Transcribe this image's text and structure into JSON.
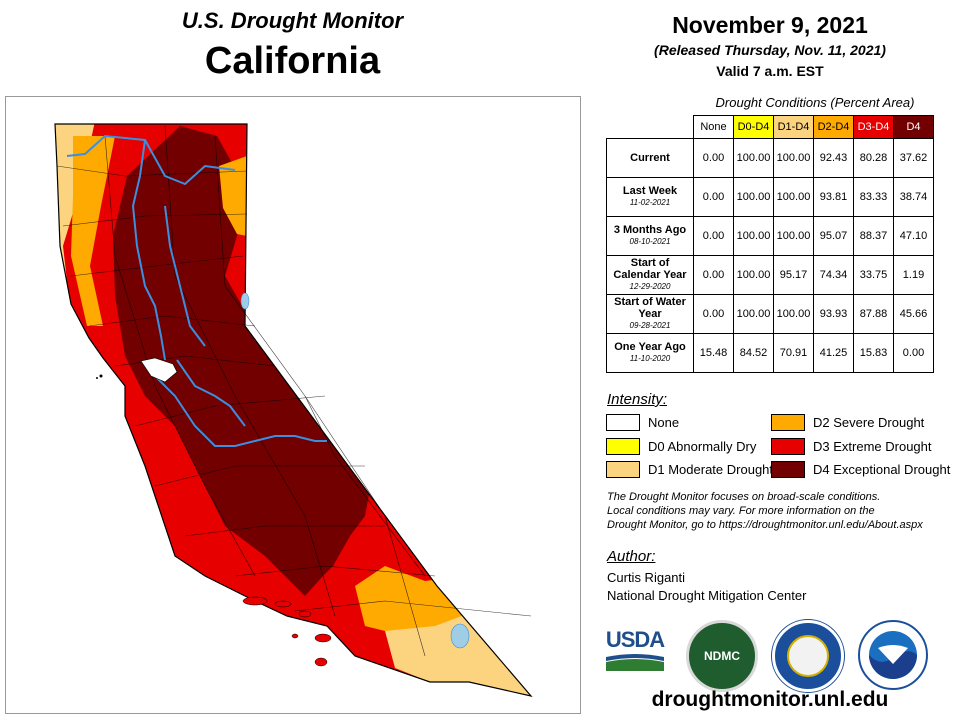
{
  "header": {
    "title_top": "U.S. Drought Monitor",
    "title_state": "California",
    "date": "November 9, 2021",
    "released": "(Released Thursday, Nov. 11, 2021)",
    "valid": "Valid 7 a.m. EST"
  },
  "colors": {
    "none": "#ffffff",
    "d0": "#ffff00",
    "d1": "#fcd37f",
    "d2": "#ffaa00",
    "d3": "#e60000",
    "d4": "#730000",
    "water": "#3b8fe0",
    "lake": "#9fcde6"
  },
  "table": {
    "caption": "Drought Conditions (Percent Area)",
    "headers": [
      "None",
      "D0-D4",
      "D1-D4",
      "D2-D4",
      "D3-D4",
      "D4"
    ],
    "rows": [
      {
        "label": "Current",
        "sublabel": "",
        "values": [
          "0.00",
          "100.00",
          "100.00",
          "92.43",
          "80.28",
          "37.62"
        ]
      },
      {
        "label": "Last Week",
        "sublabel": "11-02-2021",
        "values": [
          "0.00",
          "100.00",
          "100.00",
          "93.81",
          "83.33",
          "38.74"
        ]
      },
      {
        "label": "3 Months Ago",
        "sublabel": "08-10-2021",
        "values": [
          "0.00",
          "100.00",
          "100.00",
          "95.07",
          "88.37",
          "47.10"
        ]
      },
      {
        "label": "Start of Calendar Year",
        "sublabel": "12-29-2020",
        "values": [
          "0.00",
          "100.00",
          "95.17",
          "74.34",
          "33.75",
          "1.19"
        ]
      },
      {
        "label": "Start of Water Year",
        "sublabel": "09-28-2021",
        "values": [
          "0.00",
          "100.00",
          "100.00",
          "93.93",
          "87.88",
          "45.66"
        ]
      },
      {
        "label": "One Year Ago",
        "sublabel": "11-10-2020",
        "values": [
          "15.48",
          "84.52",
          "70.91",
          "41.25",
          "15.83",
          "0.00"
        ]
      }
    ]
  },
  "legend": {
    "title": "Intensity:",
    "items": [
      {
        "key": "none",
        "label": "None"
      },
      {
        "key": "d0",
        "label": "D0 Abnormally Dry"
      },
      {
        "key": "d1",
        "label": "D1 Moderate Drought"
      },
      {
        "key": "d2",
        "label": "D2 Severe Drought"
      },
      {
        "key": "d3",
        "label": "D3 Extreme Drought"
      },
      {
        "key": "d4",
        "label": "D4 Exceptional Drought"
      }
    ]
  },
  "note": {
    "line1": "The Drought Monitor focuses on broad-scale conditions.",
    "line2": "Local conditions may vary. For more information on the",
    "line3": "Drought Monitor, go to https://droughtmonitor.unl.edu/About.aspx"
  },
  "author": {
    "title": "Author:",
    "name": "Curtis Riganti",
    "org": "National Drought Mitigation Center"
  },
  "logos": {
    "usda": "USDA",
    "ndmc": "NDMC",
    "usda_icon": "usda-logo",
    "ndmc_icon": "ndmc-seal",
    "doc_icon": "department-of-commerce-seal",
    "noaa_icon": "noaa-logo"
  },
  "website": "droughtmonitor.unl.edu"
}
